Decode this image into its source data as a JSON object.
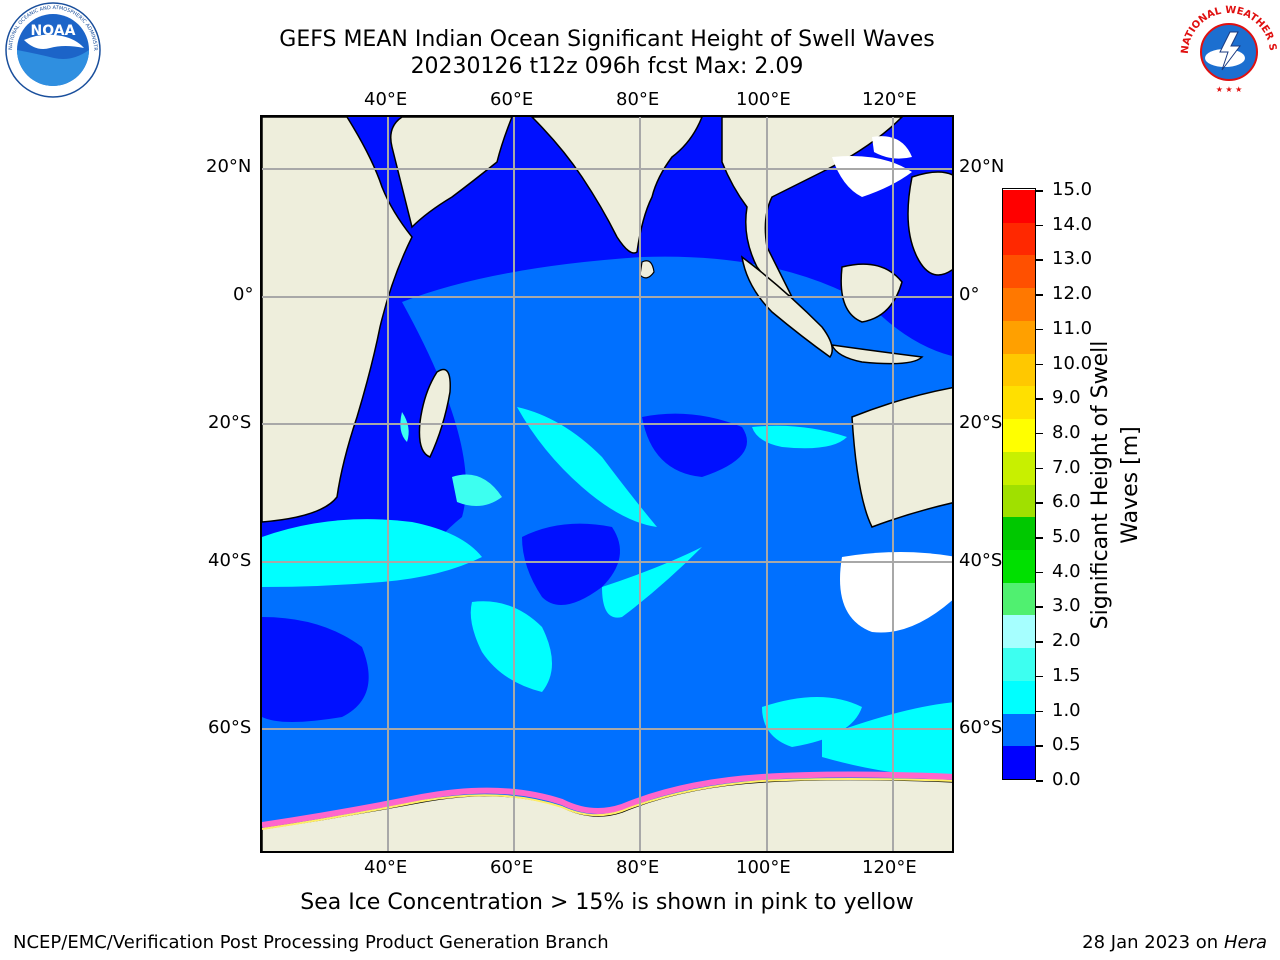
{
  "title_line1": "GEFS MEAN Indian Ocean Significant Height of Swell Waves",
  "title_line2": "20230126 t12z 096h fcst   Max: 2.09",
  "logos": {
    "left": "NOAA",
    "right": "NATIONAL WEATHER SERVICE"
  },
  "map": {
    "lon_ticks": [
      "40°E",
      "60°E",
      "80°E",
      "100°E",
      "120°E"
    ],
    "lat_ticks_left": [
      "20°N",
      "0°",
      "20°S",
      "40°S",
      "60°S"
    ],
    "lat_ticks_right": [
      "20°N",
      "0°",
      "20°S",
      "40°S",
      "60°S"
    ]
  },
  "colorbar": {
    "title_line1": "Significant Height of Swell",
    "title_line2": "Waves [m]",
    "labels": [
      "15.0",
      "14.0",
      "13.0",
      "12.0",
      "11.0",
      "10.0",
      "9.0",
      "8.0",
      "7.0",
      "6.0",
      "5.0",
      "4.0",
      "3.0",
      "2.0",
      "1.5",
      "1.0",
      "0.5",
      "0.0"
    ],
    "colors": [
      "#0000ff",
      "#0070ff",
      "#00ffff",
      "#3dfff0",
      "#a6ffff",
      "#50f070",
      "#00e000",
      "#00c800",
      "#a0e000",
      "#c8f000",
      "#ffff00",
      "#ffe000",
      "#ffc800",
      "#ffa000",
      "#ff7800",
      "#ff5000",
      "#ff2800",
      "#ff0000"
    ]
  },
  "caption": "Sea Ice Concentration > 15% is shown in pink to yellow",
  "footer_left": "NCEP/EMC/Verification Post Processing Product Generation Branch",
  "footer_right_text": "28 Jan 2023 on ",
  "footer_right_italic": "Hera"
}
